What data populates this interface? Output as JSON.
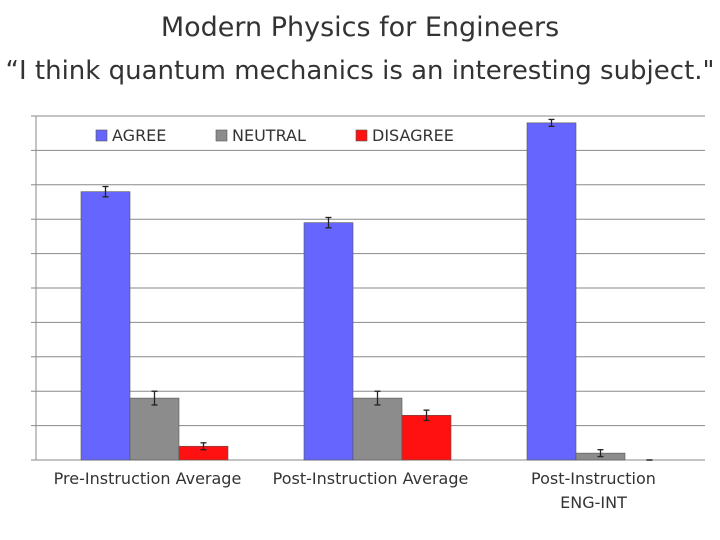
{
  "header": {
    "title": "Modern Physics for Engineers",
    "subtitle": "“I think quantum mechanics is an interesting subject.\""
  },
  "chart_data": {
    "type": "bar",
    "title": "“I think quantum mechanics is an interesting subject.\"",
    "categories": [
      "Pre-Instruction Average",
      "Post-Instruction Average",
      "Post-Instruction\nENG-INT"
    ],
    "series": [
      {
        "name": "AGREE",
        "color": "#6666ff",
        "values": [
          78,
          69,
          98
        ],
        "errors": [
          1.5,
          1.5,
          1.0
        ]
      },
      {
        "name": "NEUTRAL",
        "color": "#8c8c8c",
        "values": [
          18,
          18,
          2
        ],
        "errors": [
          2,
          2,
          1
        ]
      },
      {
        "name": "DISAGREE",
        "color": "#ff1111",
        "values": [
          4,
          13,
          0
        ],
        "errors": [
          1,
          1.5,
          0
        ]
      }
    ],
    "ylim": [
      0,
      100
    ],
    "grid": true,
    "legend": "top",
    "xlabel": "",
    "ylabel": ""
  }
}
